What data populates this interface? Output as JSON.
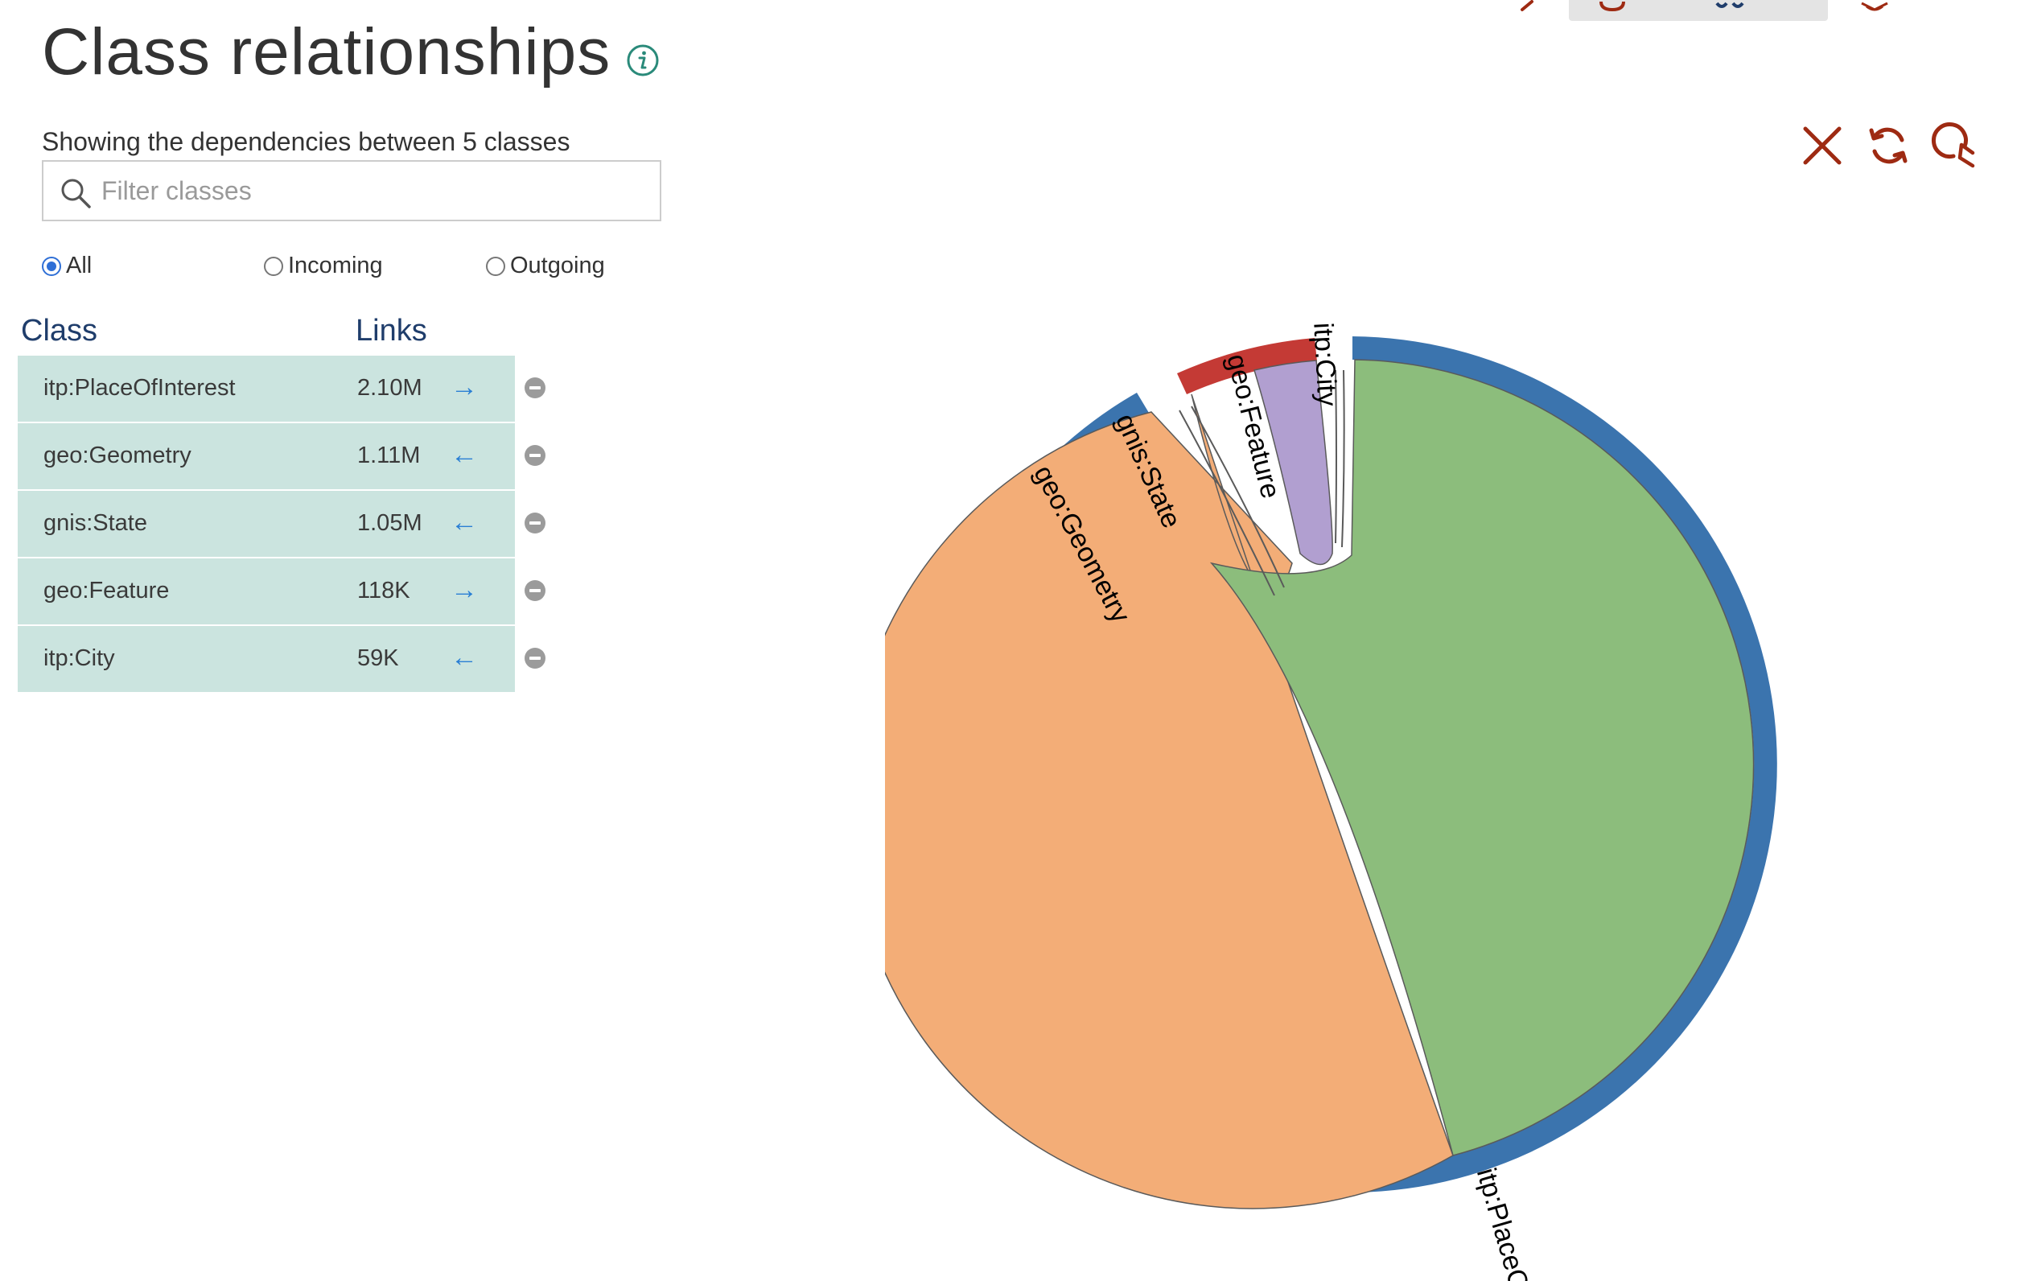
{
  "header": {
    "title": "Class relationships",
    "info_icon": "info-icon"
  },
  "panel": {
    "subtitle": "Showing the dependencies between 5 classes",
    "filter": {
      "placeholder": "Filter classes",
      "value": ""
    },
    "radios": [
      {
        "label": "All",
        "checked": true
      },
      {
        "label": "Incoming",
        "checked": false
      },
      {
        "label": "Outgoing",
        "checked": false
      }
    ],
    "columns": {
      "class": "Class",
      "links": "Links"
    },
    "rows": [
      {
        "class": "itp:PlaceOfInterest",
        "links": "2.10M",
        "direction": "→"
      },
      {
        "class": "geo:Geometry",
        "links": "1.11M",
        "direction": "←"
      },
      {
        "class": "gnis:State",
        "links": "1.05M",
        "direction": "←"
      },
      {
        "class": "geo:Feature",
        "links": "118K",
        "direction": "→"
      },
      {
        "class": "itp:City",
        "links": "59K",
        "direction": "←"
      }
    ]
  },
  "toolbar": {
    "icons": [
      "close-icon",
      "refresh-icon",
      "zoom-reset-icon"
    ],
    "accent_color": "#9e2a12"
  },
  "chart": {
    "labels": [
      "geo:Geometry",
      "gnis:State",
      "geo:Feature",
      "itp:City",
      "itp:PlaceC"
    ],
    "colors": {
      "itp:PlaceOfInterest": "#3b74ae",
      "geo:Feature": "#c43a35",
      "geo:Geometry_chord": "#f3ad77",
      "gnis:State_chord": "#8cbd7c",
      "itp:City_chord": "#b19fd0"
    }
  }
}
